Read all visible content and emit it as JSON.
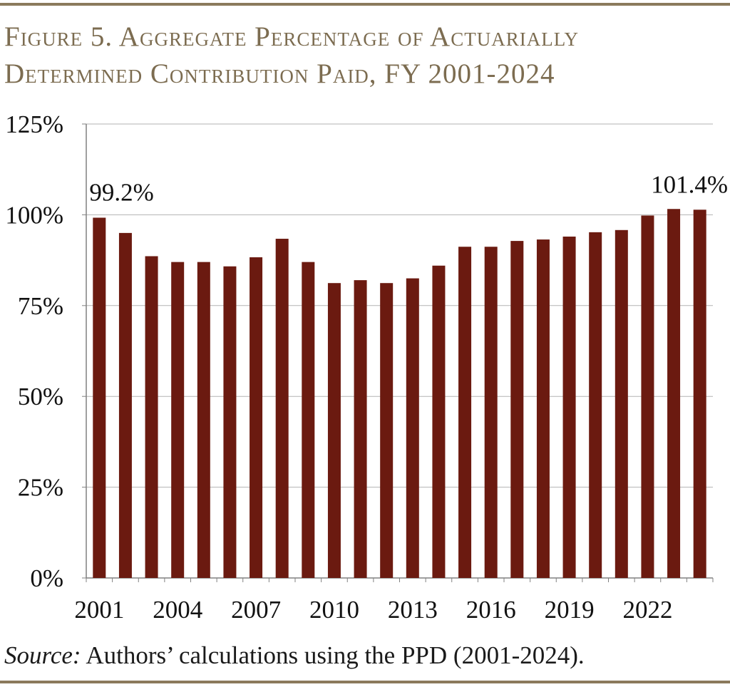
{
  "title_line1": "Figure 5. Aggregate Percentage of Actuarially",
  "title_line2": "Determined Contribution Paid, FY 2001-2024",
  "source_label": "Source:",
  "source_text": "Authors’ calculations using the PPD (2001-2024).",
  "colors": {
    "bar": "#6b1a10",
    "title": "#7c6c50",
    "rule": "#8b7a5c",
    "grid": "#b3b3b3"
  },
  "chart_data": {
    "type": "bar",
    "title": "Aggregate Percentage of Actuarially Determined Contribution Paid, FY 2001-2024",
    "xlabel": "",
    "ylabel": "",
    "categories": [
      "2001",
      "2002",
      "2003",
      "2004",
      "2005",
      "2006",
      "2007",
      "2008",
      "2009",
      "2010",
      "2011",
      "2012",
      "2013",
      "2014",
      "2015",
      "2016",
      "2017",
      "2018",
      "2019",
      "2020",
      "2021",
      "2022",
      "2023",
      "2024"
    ],
    "values": [
      99.2,
      95.0,
      88.6,
      87.0,
      87.0,
      85.8,
      88.3,
      93.4,
      87.0,
      81.2,
      82.0,
      81.2,
      82.5,
      86.0,
      91.2,
      91.2,
      92.8,
      93.2,
      94.0,
      95.2,
      95.8,
      99.8,
      101.6,
      101.4
    ],
    "ylim": [
      0,
      125
    ],
    "yticks": [
      0,
      25,
      50,
      75,
      100,
      125
    ],
    "ytick_labels": [
      "0%",
      "25%",
      "50%",
      "75%",
      "100%",
      "125%"
    ],
    "xtick_labels": [
      "2001",
      "2004",
      "2007",
      "2010",
      "2013",
      "2016",
      "2019",
      "2022"
    ],
    "annotations": [
      {
        "category": "2001",
        "text": "99.2%"
      },
      {
        "category": "2024",
        "text": "101.4%"
      }
    ],
    "grid": true,
    "legend": "none"
  }
}
